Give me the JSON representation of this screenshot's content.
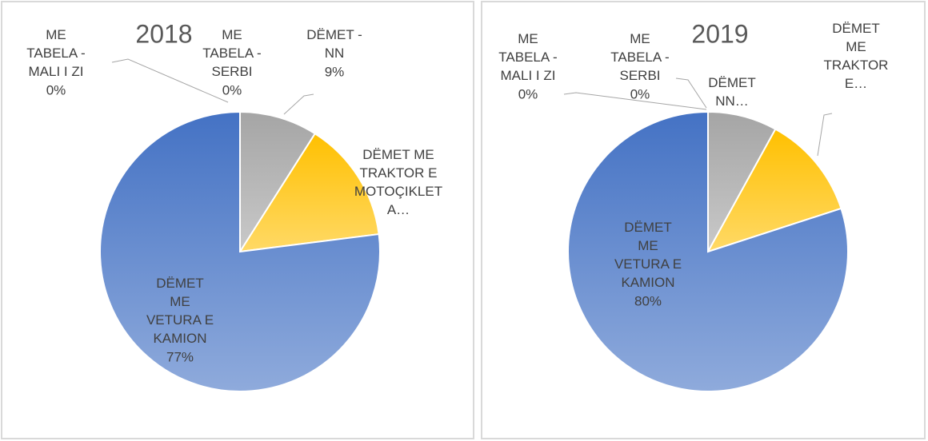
{
  "chart_data": [
    {
      "type": "pie",
      "title": "2018",
      "categories": [
        "ME TABELA - MALI I ZI",
        "ME TABELA - SERBI",
        "DËMET - NN",
        "DËMET ME TRAKTOR E MOTOÇIKLET A…",
        "DËMET ME VETURA E KAMION"
      ],
      "values": [
        0,
        0,
        9,
        14,
        77
      ],
      "value_labels": [
        "0%",
        "0%",
        "9%",
        null,
        "77%"
      ],
      "colors": [
        "#264478",
        "#636363",
        "#a5a5a5",
        "#ffc000",
        "#4472c4"
      ]
    },
    {
      "type": "pie",
      "title": "2019",
      "categories": [
        "ME TABELA - MALI I ZI",
        "ME TABELA - SERBI",
        "DËMET NN…",
        "DËMET ME TRAKTOR E…",
        "DËMET ME VETURA E KAMION"
      ],
      "values": [
        0,
        0,
        8,
        12,
        80
      ],
      "value_labels": [
        "0%",
        "0%",
        null,
        null,
        "80%"
      ],
      "colors": [
        "#264478",
        "#636363",
        "#a5a5a5",
        "#ffc000",
        "#4472c4"
      ]
    }
  ]
}
